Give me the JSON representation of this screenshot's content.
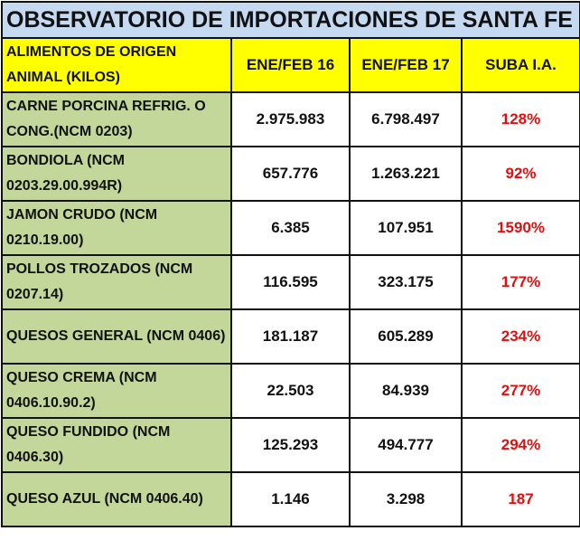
{
  "title": "OBSERVATORIO DE IMPORTACIONES DE SANTA FE",
  "headers": [
    "ALIMENTOS DE ORIGEN ANIMAL (KILOS)",
    "ENE/FEB 16",
    "ENE/FEB 17",
    "SUBA I.A."
  ],
  "colors": {
    "title_bg": "#c5d9f1",
    "header_bg": "#ffff00",
    "product_bg": "#c4d79b",
    "increase_text": "#e01010"
  },
  "rows": [
    {
      "product": "CARNE PORCINA REFRIG. O CONG.(NCM 0203)",
      "feb16": "2.975.983",
      "feb17": "6.798.497",
      "increase": "128%"
    },
    {
      "product": "BONDIOLA (NCM 0203.29.00.994R)",
      "feb16": "657.776",
      "feb17": "1.263.221",
      "increase": "92%"
    },
    {
      "product": "JAMON CRUDO (NCM 0210.19.00)",
      "feb16": "6.385",
      "feb17": "107.951",
      "increase": "1590%"
    },
    {
      "product": "POLLOS TROZADOS (NCM 0207.14)",
      "feb16": "116.595",
      "feb17": "323.175",
      "increase": "177%"
    },
    {
      "product": "QUESOS GENERAL (NCM 0406)",
      "feb16": "181.187",
      "feb17": "605.289",
      "increase": "234%"
    },
    {
      "product": "QUESO CREMA (NCM 0406.10.90.2)",
      "feb16": "22.503",
      "feb17": "84.939",
      "increase": "277%"
    },
    {
      "product": "QUESO FUNDIDO (NCM 0406.30)",
      "feb16": "125.293",
      "feb17": "494.777",
      "increase": "294%"
    },
    {
      "product": "QUESO AZUL (NCM 0406.40)",
      "feb16": "1.146",
      "feb17": "3.298",
      "increase": "187"
    }
  ]
}
